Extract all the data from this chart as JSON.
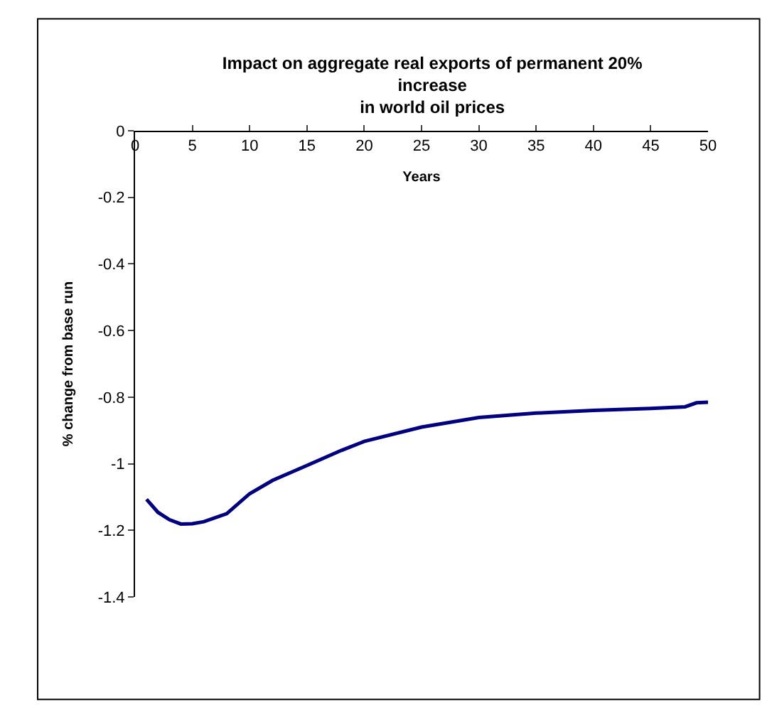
{
  "chart_data": {
    "type": "line",
    "title": "Impact on aggregate real exports of permanent 20%\nincrease\nin world oil prices",
    "xlabel": "Years",
    "ylabel": "% change from base run",
    "x": [
      1,
      2,
      3,
      4,
      5,
      6,
      8,
      10,
      12,
      15,
      18,
      20,
      25,
      30,
      35,
      40,
      45,
      48,
      49,
      50
    ],
    "series": [
      {
        "color": "#000080",
        "values": [
          -1.107,
          -1.146,
          -1.168,
          -1.181,
          -1.18,
          -1.174,
          -1.15,
          -1.09,
          -1.05,
          -1.005,
          -0.96,
          -0.933,
          -0.89,
          -0.861,
          -0.848,
          -0.84,
          -0.834,
          -0.829,
          -0.817,
          -0.815
        ]
      }
    ],
    "xlim": [
      0,
      50
    ],
    "xticks": [
      0,
      5,
      10,
      15,
      20,
      25,
      30,
      35,
      40,
      45,
      50
    ],
    "ylim": [
      -1.4,
      0
    ],
    "yticks": [
      {
        "value": -1.4,
        "label": "-1.4"
      },
      {
        "value": -1.2,
        "label": "-1.2"
      },
      {
        "value": -1,
        "label": "-1"
      },
      {
        "value": -0.8,
        "label": "-0.8"
      },
      {
        "value": -0.6,
        "label": "-0.6"
      },
      {
        "value": -0.4,
        "label": "-0.4"
      },
      {
        "value": -0.2,
        "label": "-0.2"
      },
      0
    ],
    "marker": "none",
    "line_style": "solid"
  }
}
